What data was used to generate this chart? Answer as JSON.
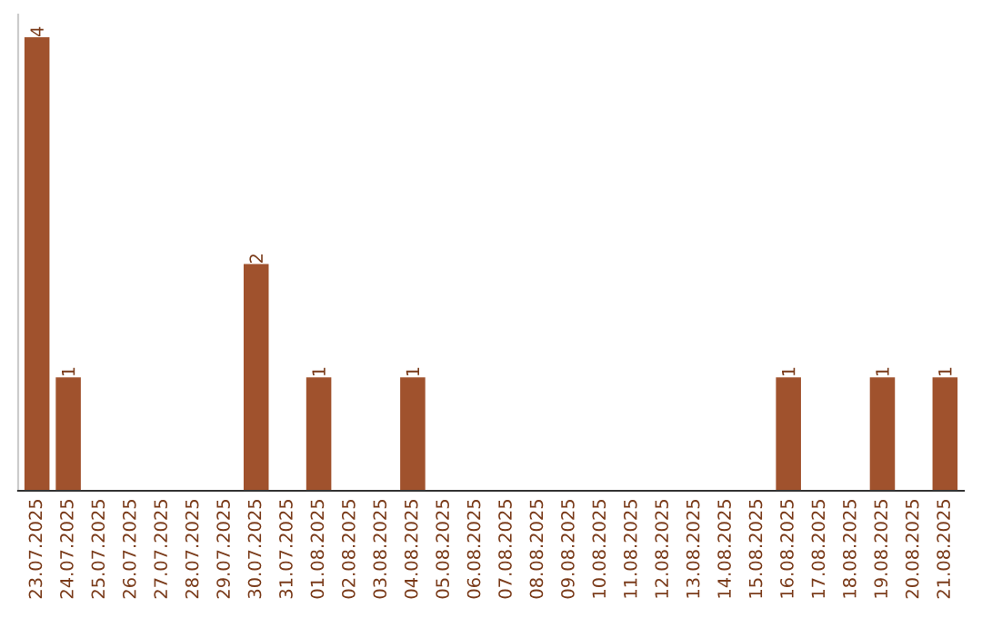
{
  "chart_data": {
    "type": "bar",
    "categories": [
      "23.07.2025",
      "24.07.2025",
      "25.07.2025",
      "26.07.2025",
      "27.07.2025",
      "28.07.2025",
      "29.07.2025",
      "30.07.2025",
      "31.07.2025",
      "01.08.2025",
      "02.08.2025",
      "03.08.2025",
      "04.08.2025",
      "05.08.2025",
      "06.08.2025",
      "07.08.2025",
      "08.08.2025",
      "09.08.2025",
      "10.08.2025",
      "11.08.2025",
      "12.08.2025",
      "13.08.2025",
      "14.08.2025",
      "15.08.2025",
      "16.08.2025",
      "17.08.2025",
      "18.08.2025",
      "19.08.2025",
      "20.08.2025",
      "21.08.2025"
    ],
    "values": [
      4,
      1,
      0,
      0,
      0,
      0,
      0,
      2,
      0,
      1,
      0,
      0,
      1,
      0,
      0,
      0,
      0,
      0,
      0,
      0,
      0,
      0,
      0,
      0,
      1,
      0,
      0,
      1,
      0,
      1
    ],
    "color": "#a0522d",
    "value_labels": [
      "4",
      "1",
      null,
      null,
      null,
      null,
      null,
      "2",
      null,
      "1",
      null,
      null,
      "1",
      null,
      null,
      null,
      null,
      null,
      null,
      null,
      null,
      null,
      null,
      null,
      "1",
      null,
      null,
      "1",
      null,
      "1"
    ],
    "grid": false,
    "tick_labels": "x"
  }
}
